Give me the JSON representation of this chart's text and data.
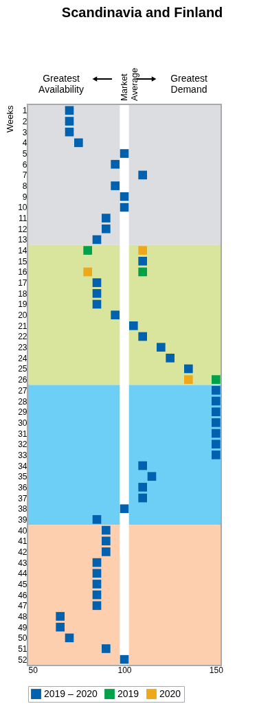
{
  "chart_data": {
    "type": "scatter",
    "title": "Scandinavia and Finland",
    "ylabel": "Weeks",
    "annotations": [
      "Greatest Availability",
      "Greatest Demand"
    ],
    "xlim": [
      47.5,
      152.5
    ],
    "xticks": [
      50,
      100,
      150
    ],
    "ylim": [
      52.5,
      0.5
    ],
    "yticks": [
      1,
      2,
      3,
      4,
      5,
      6,
      7,
      8,
      9,
      10,
      11,
      12,
      13,
      14,
      15,
      16,
      17,
      18,
      19,
      20,
      21,
      22,
      23,
      24,
      25,
      26,
      27,
      28,
      29,
      30,
      31,
      32,
      33,
      34,
      35,
      36,
      37,
      38,
      39,
      40,
      41,
      42,
      43,
      44,
      45,
      46,
      47,
      48,
      49,
      50,
      51,
      52
    ],
    "marker": "square",
    "legend": "bottom",
    "grid": false,
    "bands": [
      {
        "axis": "y",
        "from": 0.5,
        "to": 13.5,
        "color": "#dcdde0"
      },
      {
        "axis": "y",
        "from": 13.5,
        "to": 26.5,
        "color": "#d9e59c"
      },
      {
        "axis": "y",
        "from": 26.5,
        "to": 39.5,
        "color": "#6dcff6"
      },
      {
        "axis": "y",
        "from": 39.5,
        "to": 52.5,
        "color": "#fdcfae"
      },
      {
        "axis": "x",
        "from": 97.5,
        "to": 102.5,
        "color": "#ffffff",
        "label": "Market Average"
      }
    ],
    "series": [
      {
        "name": "2019 – 2020",
        "color": "#0061ae",
        "x": [
          70,
          70,
          70,
          75,
          100,
          95,
          110,
          95,
          100,
          100,
          90,
          90,
          85,
          110,
          85,
          85,
          85,
          95,
          105,
          110,
          120,
          125,
          135,
          150,
          150,
          150,
          150,
          150,
          150,
          150,
          110,
          115,
          110,
          110,
          100,
          85,
          90,
          90,
          90,
          85,
          85,
          85,
          85,
          85,
          65,
          65,
          70,
          90,
          100
        ],
        "values": [
          1,
          2,
          3,
          4,
          5,
          6,
          7,
          8,
          9,
          10,
          11,
          12,
          13,
          15,
          17,
          18,
          19,
          20,
          21,
          22,
          23,
          24,
          25,
          27,
          28,
          29,
          30,
          31,
          32,
          33,
          34,
          35,
          36,
          37,
          38,
          39,
          40,
          41,
          42,
          43,
          44,
          45,
          46,
          47,
          48,
          49,
          50,
          51,
          52
        ]
      },
      {
        "name": "2019",
        "color": "#00a14b",
        "x": [
          80,
          110,
          150
        ],
        "values": [
          14,
          16,
          26
        ]
      },
      {
        "name": "2020",
        "color": "#f0a81b",
        "x": [
          110,
          80,
          135
        ],
        "values": [
          14,
          16,
          26
        ]
      }
    ]
  }
}
